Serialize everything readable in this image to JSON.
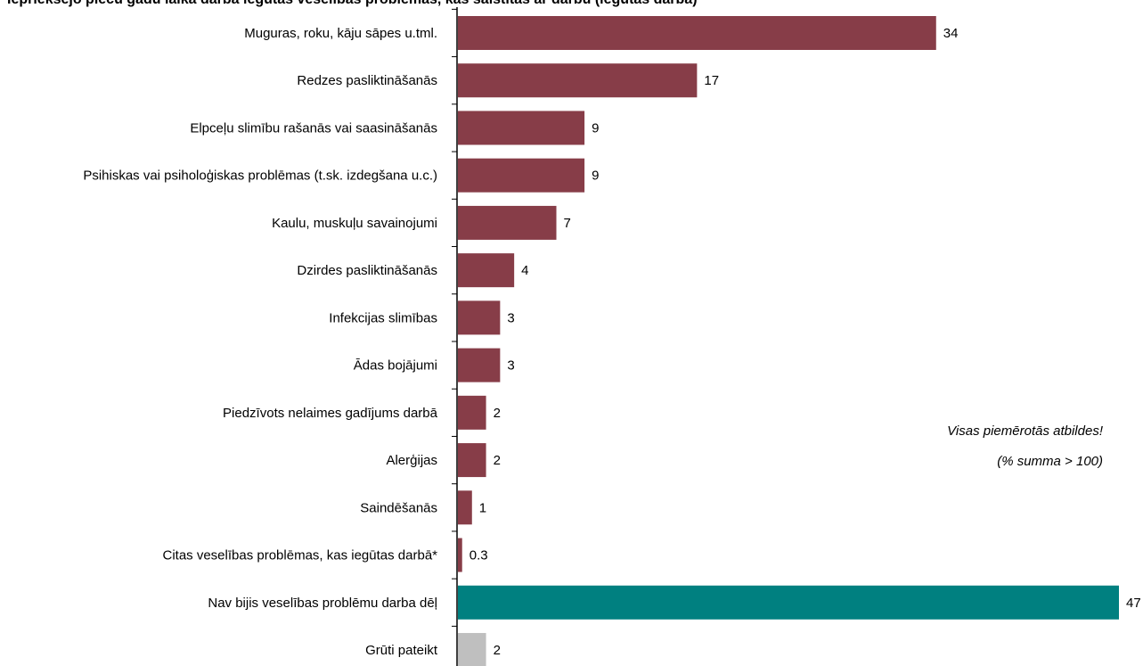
{
  "chart_data": {
    "type": "bar",
    "orientation": "horizontal",
    "title": "Iepriekšējo piecu gadu laikā darbā iegūtās veselības problēmas, kas saistītas ar darbu (iegūtas darbā)",
    "categories": [
      "Muguras, roku, kāju sāpes u.tml.",
      "Redzes pasliktināšanās",
      "Elpceļu slimību rašanās vai saasināšanās",
      "Psihiskas vai psiholoģiskas problēmas (t.sk. izdegšana u.c.)",
      "Kaulu, muskuļu savainojumi",
      "Dzirdes pasliktināšanās",
      "Infekcijas slimības",
      "Ādas bojājumi",
      "Piedzīvots nelaimes gadījums darbā",
      "Alerģijas",
      "Saindēšanās",
      "Citas veselības problēmas, kas iegūtas darbā*",
      "Nav bijis veselības problēmu darba dēļ",
      "Grūti pateikt"
    ],
    "values": [
      34,
      17,
      9,
      9,
      7,
      4,
      3,
      3,
      2,
      2,
      1,
      0.3,
      47,
      2
    ],
    "value_labels": [
      "34",
      "17",
      "9",
      "9",
      "7",
      "4",
      "3",
      "3",
      "2",
      "2",
      "1",
      "0.3",
      "47",
      "2"
    ],
    "bar_colors": [
      "#873d48",
      "#873d48",
      "#873d48",
      "#873d48",
      "#873d48",
      "#873d48",
      "#873d48",
      "#873d48",
      "#873d48",
      "#873d48",
      "#873d48",
      "#873d48",
      "#008080",
      "#bfbfbf"
    ],
    "xlim": [
      0,
      47
    ],
    "grid": false,
    "legend": "none",
    "annotation": [
      "Visas piemērotās atbildes!",
      "(% summa > 100)"
    ]
  }
}
